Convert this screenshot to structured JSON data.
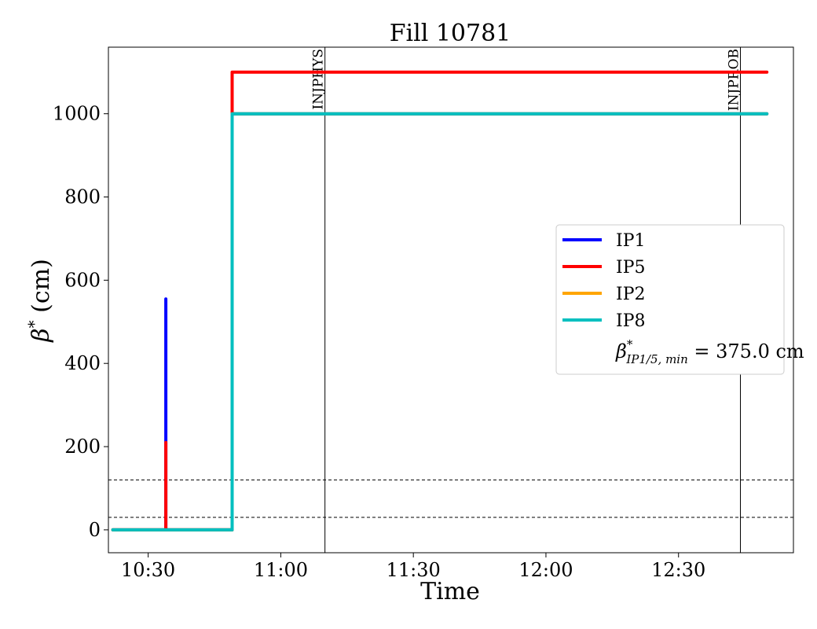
{
  "chart_data": {
    "type": "line",
    "title": "Fill 10781",
    "xlabel": "Time",
    "ylabel_main": "β",
    "ylabel_sup": "*",
    "ylabel_unit": " (cm)",
    "xlim": [
      "10:21",
      "12:56"
    ],
    "ylim": [
      -55,
      1160
    ],
    "xticks": [
      {
        "t": "10:30",
        "label": "10:30"
      },
      {
        "t": "11:00",
        "label": "11:00"
      },
      {
        "t": "11:30",
        "label": "11:30"
      },
      {
        "t": "12:00",
        "label": "12:00"
      },
      {
        "t": "12:30",
        "label": "12:30"
      }
    ],
    "yticks": [
      0,
      200,
      400,
      600,
      800,
      1000
    ],
    "grid": false,
    "legend_placement": "center-right",
    "series": [
      {
        "name": "IP1",
        "color": "#0000ff",
        "points": [
          [
            "10:22",
            0
          ],
          [
            "10:34",
            0
          ],
          [
            "10:34",
            555
          ],
          [
            "10:34",
            0
          ],
          [
            "10:49",
            0
          ],
          [
            "10:49",
            1000
          ],
          [
            "12:50",
            1000
          ]
        ]
      },
      {
        "name": "IP5",
        "color": "#ff0000",
        "points": [
          [
            "10:22",
            0
          ],
          [
            "10:34",
            0
          ],
          [
            "10:34",
            210
          ],
          [
            "10:34",
            0
          ],
          [
            "10:49",
            0
          ],
          [
            "10:49",
            1100
          ],
          [
            "12:50",
            1100
          ]
        ]
      },
      {
        "name": "IP2",
        "color": "#ffa500",
        "points": [
          [
            "10:22",
            0
          ],
          [
            "10:49",
            0
          ],
          [
            "10:49",
            1000
          ],
          [
            "12:50",
            1000
          ]
        ]
      },
      {
        "name": "IP8",
        "color": "#00bfbf",
        "points": [
          [
            "10:22",
            0
          ],
          [
            "10:49",
            0
          ],
          [
            "10:49",
            1000
          ],
          [
            "12:50",
            1000
          ]
        ]
      }
    ],
    "hlines": [
      {
        "y": 30,
        "style": "dashed",
        "color": "#000000"
      },
      {
        "y": 120,
        "style": "dashed",
        "color": "#000000"
      }
    ],
    "vlines": [
      {
        "t": "11:10",
        "label": "INJPHYS"
      },
      {
        "t": "12:44",
        "label": "INJPROB"
      }
    ],
    "legend_note": {
      "main": "β",
      "sup": "*",
      "sub": "IP1/5, min",
      "text": " = 375.0 cm"
    }
  }
}
